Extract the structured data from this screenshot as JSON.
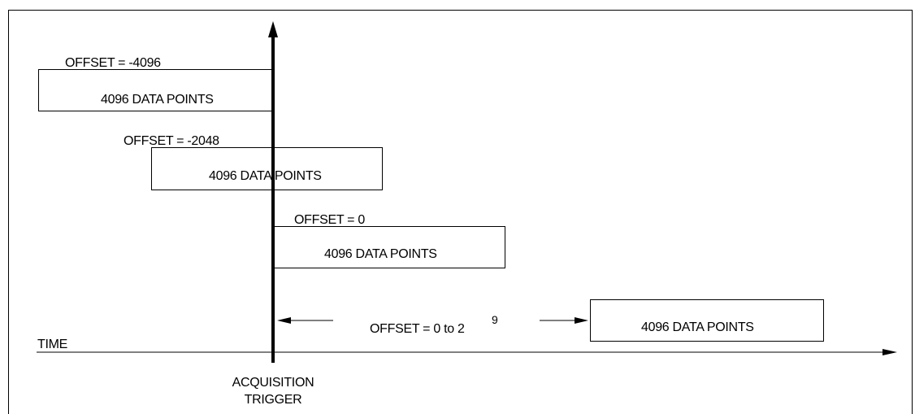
{
  "blocks": [
    {
      "offset_label": "OFFSET = -4096",
      "box_label": "4096 DATA POINTS"
    },
    {
      "offset_label": "OFFSET = -2048",
      "box_label": "4096 DATA POINTS"
    },
    {
      "offset_label": "OFFSET = 0",
      "box_label": "4096 DATA POINTS"
    },
    {
      "offset_label": "OFFSET = 0 to 2",
      "offset_exponent": "9",
      "box_label": "4096 DATA POINTS"
    }
  ],
  "time_label": "TIME",
  "trigger_label_line1": "ACQUISITION",
  "trigger_label_line2": "TRIGGER"
}
